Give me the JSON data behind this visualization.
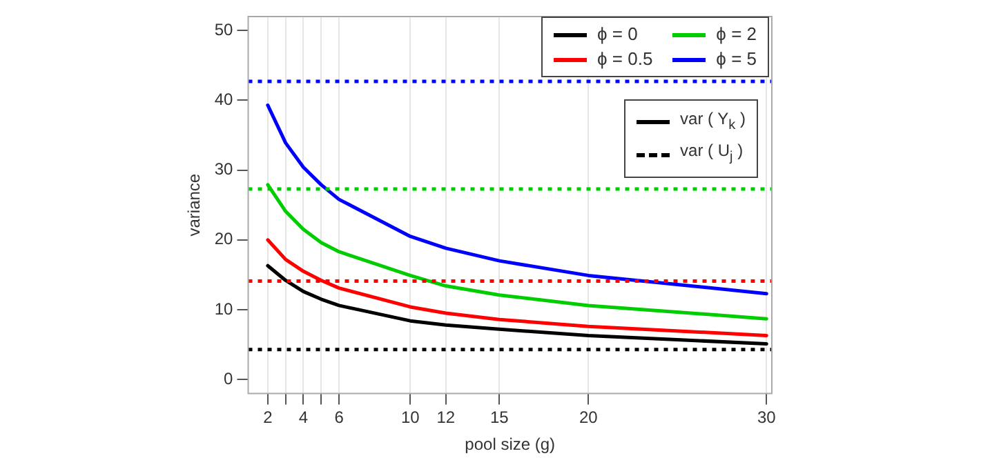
{
  "chart_data": {
    "type": "line",
    "xlabel": "pool size (g)",
    "ylabel": "variance",
    "x": [
      2,
      3,
      4,
      5,
      6,
      10,
      12,
      15,
      20,
      30
    ],
    "series": [
      {
        "name": "ϕ = 0",
        "color": "#000000",
        "values": [
          16.3,
          14.2,
          12.6,
          11.5,
          10.6,
          8.4,
          7.8,
          7.2,
          6.3,
          5.1
        ]
      },
      {
        "name": "ϕ = 0.5",
        "color": "#ff0000",
        "values": [
          20.0,
          17.2,
          15.5,
          14.2,
          13.1,
          10.4,
          9.5,
          8.6,
          7.6,
          6.3
        ]
      },
      {
        "name": "ϕ = 2",
        "color": "#00cd00",
        "values": [
          27.9,
          24.1,
          21.5,
          19.6,
          18.3,
          14.9,
          13.4,
          12.1,
          10.6,
          8.7
        ]
      },
      {
        "name": "ϕ = 5",
        "color": "#0000ff",
        "values": [
          39.3,
          33.9,
          30.4,
          27.9,
          25.8,
          20.5,
          18.8,
          17.0,
          14.9,
          12.3
        ]
      }
    ],
    "ref_lines": [
      {
        "axis": "y",
        "value": 4.3,
        "color": "#000000",
        "line_style": "dotted"
      },
      {
        "axis": "y",
        "value": 14.1,
        "color": "#ff0000",
        "line_style": "dotted"
      },
      {
        "axis": "y",
        "value": 27.3,
        "color": "#00cd00",
        "line_style": "dotted"
      },
      {
        "axis": "y",
        "value": 42.7,
        "color": "#0000ff",
        "line_style": "dotted"
      }
    ],
    "annotations": [
      "var ( Y$_{k}$ )",
      "var ( U$_{j}$ )"
    ],
    "xlim": [
      0.9,
      30.3
    ],
    "ylim": [
      -2,
      52
    ],
    "xticks": [
      2,
      {
        "value": 3,
        "label": null
      },
      4,
      {
        "value": 5,
        "label": null
      },
      6,
      10,
      12,
      15,
      20,
      30
    ],
    "yticks": [
      0,
      10,
      20,
      30,
      40,
      50
    ],
    "grid": "x",
    "legend": "top right",
    "marker": "none",
    "line_style": "solid"
  }
}
